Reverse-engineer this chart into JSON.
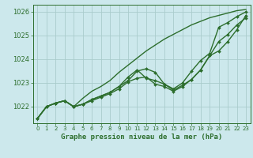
{
  "title": "Graphe pression niveau de la mer (hPa)",
  "bg_color": "#cce8ec",
  "grid_color": "#aacccc",
  "line_color": "#2d6e2d",
  "xlim": [
    -0.5,
    23.5
  ],
  "ylim": [
    1021.3,
    1026.3
  ],
  "yticks": [
    1022,
    1023,
    1024,
    1025,
    1026
  ],
  "xticks": [
    0,
    1,
    2,
    3,
    4,
    5,
    6,
    7,
    8,
    9,
    10,
    11,
    12,
    13,
    14,
    15,
    16,
    17,
    18,
    19,
    20,
    21,
    22,
    23
  ],
  "series": [
    {
      "y": [
        1021.5,
        1022.0,
        1022.15,
        1022.25,
        1022.0,
        1022.1,
        1022.25,
        1022.4,
        1022.55,
        1022.75,
        1023.05,
        1023.2,
        1023.25,
        1022.95,
        1022.85,
        1022.65,
        1022.85,
        1023.15,
        1023.55,
        1024.15,
        1024.35,
        1024.75,
        1025.25,
        1025.85
      ],
      "marker": true,
      "lw": 1.0
    },
    {
      "y": [
        1021.5,
        1022.0,
        1022.15,
        1022.25,
        1022.0,
        1022.1,
        1022.3,
        1022.45,
        1022.6,
        1022.85,
        1023.1,
        1023.5,
        1023.6,
        1023.45,
        1022.95,
        1022.75,
        1023.0,
        1023.5,
        1023.95,
        1024.25,
        1025.35,
        1025.55,
        1025.8,
        1026.0
      ],
      "marker": true,
      "lw": 1.0
    },
    {
      "y": [
        1021.5,
        1022.0,
        1022.15,
        1022.25,
        1022.0,
        1022.1,
        1022.3,
        1022.45,
        1022.6,
        1022.85,
        1023.25,
        1023.55,
        1023.2,
        1023.1,
        1022.95,
        1022.7,
        1022.9,
        1023.15,
        1023.55,
        1024.15,
        1024.75,
        1025.05,
        1025.45,
        1025.75
      ],
      "marker": true,
      "lw": 1.0
    },
    {
      "y": [
        1021.5,
        1022.0,
        1022.15,
        1022.25,
        1022.0,
        1022.35,
        1022.65,
        1022.85,
        1023.1,
        1023.45,
        1023.75,
        1024.05,
        1024.35,
        1024.6,
        1024.85,
        1025.05,
        1025.25,
        1025.45,
        1025.6,
        1025.75,
        1025.85,
        1025.95,
        1026.05,
        1026.1
      ],
      "marker": false,
      "lw": 1.0
    }
  ]
}
